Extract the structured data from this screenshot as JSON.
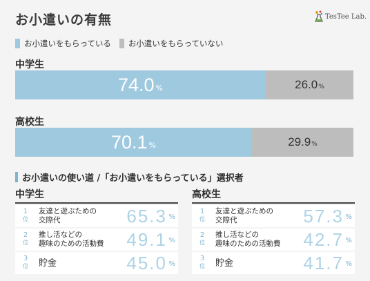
{
  "title": "お小遣いの有無",
  "logo": {
    "text": "TesTee Lab."
  },
  "colors": {
    "yes": "#9ec9df",
    "no": "#bdbdbd",
    "accent": "#7fb3ce",
    "rank_value": "#aed3e6"
  },
  "chart_data": [
    {
      "type": "bar",
      "stacked": true,
      "orientation": "horizontal",
      "title": "お小遣いの有無",
      "legend": {
        "placement": "top-left",
        "entries": [
          "お小遣いをもらっている",
          "お小遣いをもらっていない"
        ]
      },
      "categories": [
        "中学生",
        "高校生"
      ],
      "unit": "%",
      "series": [
        {
          "name": "お小遣いをもらっている",
          "values": [
            74.0,
            70.1
          ]
        },
        {
          "name": "お小遣いをもらっていない",
          "values": [
            26.0,
            29.9
          ]
        }
      ]
    },
    {
      "type": "table",
      "title": "お小遣いの使い道 /「お小遣いをもらっている」選択者",
      "unit": "%",
      "rank_unit": "位",
      "groups": [
        {
          "name": "中学生",
          "items": [
            {
              "rank": "1",
              "lines": [
                "友達と遊ぶための",
                "交際代"
              ],
              "value": "65.3"
            },
            {
              "rank": "2",
              "lines": [
                "推し活などの",
                "趣味のための活動費"
              ],
              "value": "49.1"
            },
            {
              "rank": "3",
              "lines": [
                "貯金"
              ],
              "value": "45.0"
            }
          ]
        },
        {
          "name": "高校生",
          "items": [
            {
              "rank": "1",
              "lines": [
                "友達と遊ぶための",
                "交際代"
              ],
              "value": "57.3"
            },
            {
              "rank": "2",
              "lines": [
                "推し活などの",
                "趣味のための活動費"
              ],
              "value": "42.7"
            },
            {
              "rank": "3",
              "lines": [
                "貯金"
              ],
              "value": "41.7"
            }
          ]
        }
      ]
    }
  ]
}
